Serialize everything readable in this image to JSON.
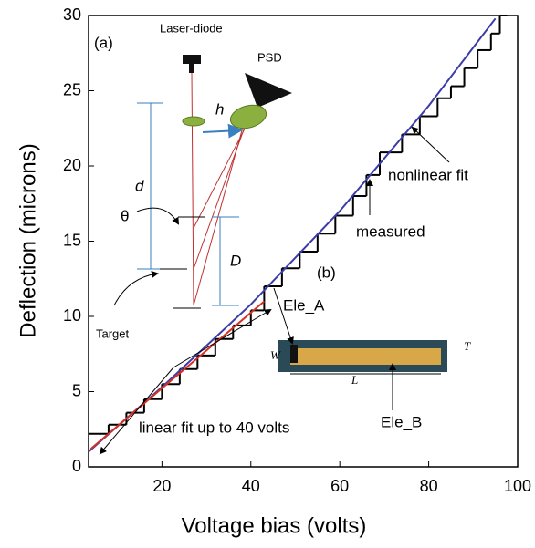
{
  "chart_data": {
    "type": "line",
    "xlabel": "Voltage bias (volts)",
    "ylabel": "Deflection (microns)",
    "xlim": [
      3.5,
      100
    ],
    "ylim": [
      0,
      30
    ],
    "xticks": [
      20,
      40,
      60,
      80,
      100
    ],
    "yticks": [
      0,
      5,
      10,
      15,
      20,
      25,
      30
    ],
    "series": [
      {
        "name": "measured",
        "color": "#000000",
        "step": true,
        "x": [
          3.5,
          8,
          12,
          16,
          20,
          24,
          28,
          32,
          36,
          40,
          43,
          47,
          51,
          55,
          59,
          63,
          66,
          69,
          74,
          78,
          82,
          85,
          88,
          91,
          94,
          96
        ],
        "values": [
          2.2,
          2.8,
          3.6,
          4.5,
          5.5,
          6.5,
          7.4,
          8.5,
          9.4,
          10.4,
          12,
          13.2,
          14.3,
          15.5,
          16.7,
          18,
          19.4,
          20.9,
          22.1,
          23.3,
          24.5,
          25.3,
          26.5,
          27.7,
          28.8,
          30
        ]
      },
      {
        "name": "nonlinear fit",
        "color": "#3c3ca8",
        "step": false,
        "x": [
          3.5,
          20,
          40,
          60,
          80,
          95
        ],
        "values": [
          1,
          5.3,
          10.8,
          17,
          24,
          29.8
        ]
      },
      {
        "name": "linear fit up to 40 volts",
        "color": "#d83020",
        "step": false,
        "x": [
          4,
          43
        ],
        "values": [
          1.2,
          11
        ]
      }
    ],
    "annotations": [
      "(a)",
      "Laser-diode",
      "PSD",
      "h",
      "d",
      "θ",
      "D",
      "Target",
      "(b)",
      "Ele_A",
      "Ele_B",
      "W",
      "T",
      "L"
    ]
  }
}
